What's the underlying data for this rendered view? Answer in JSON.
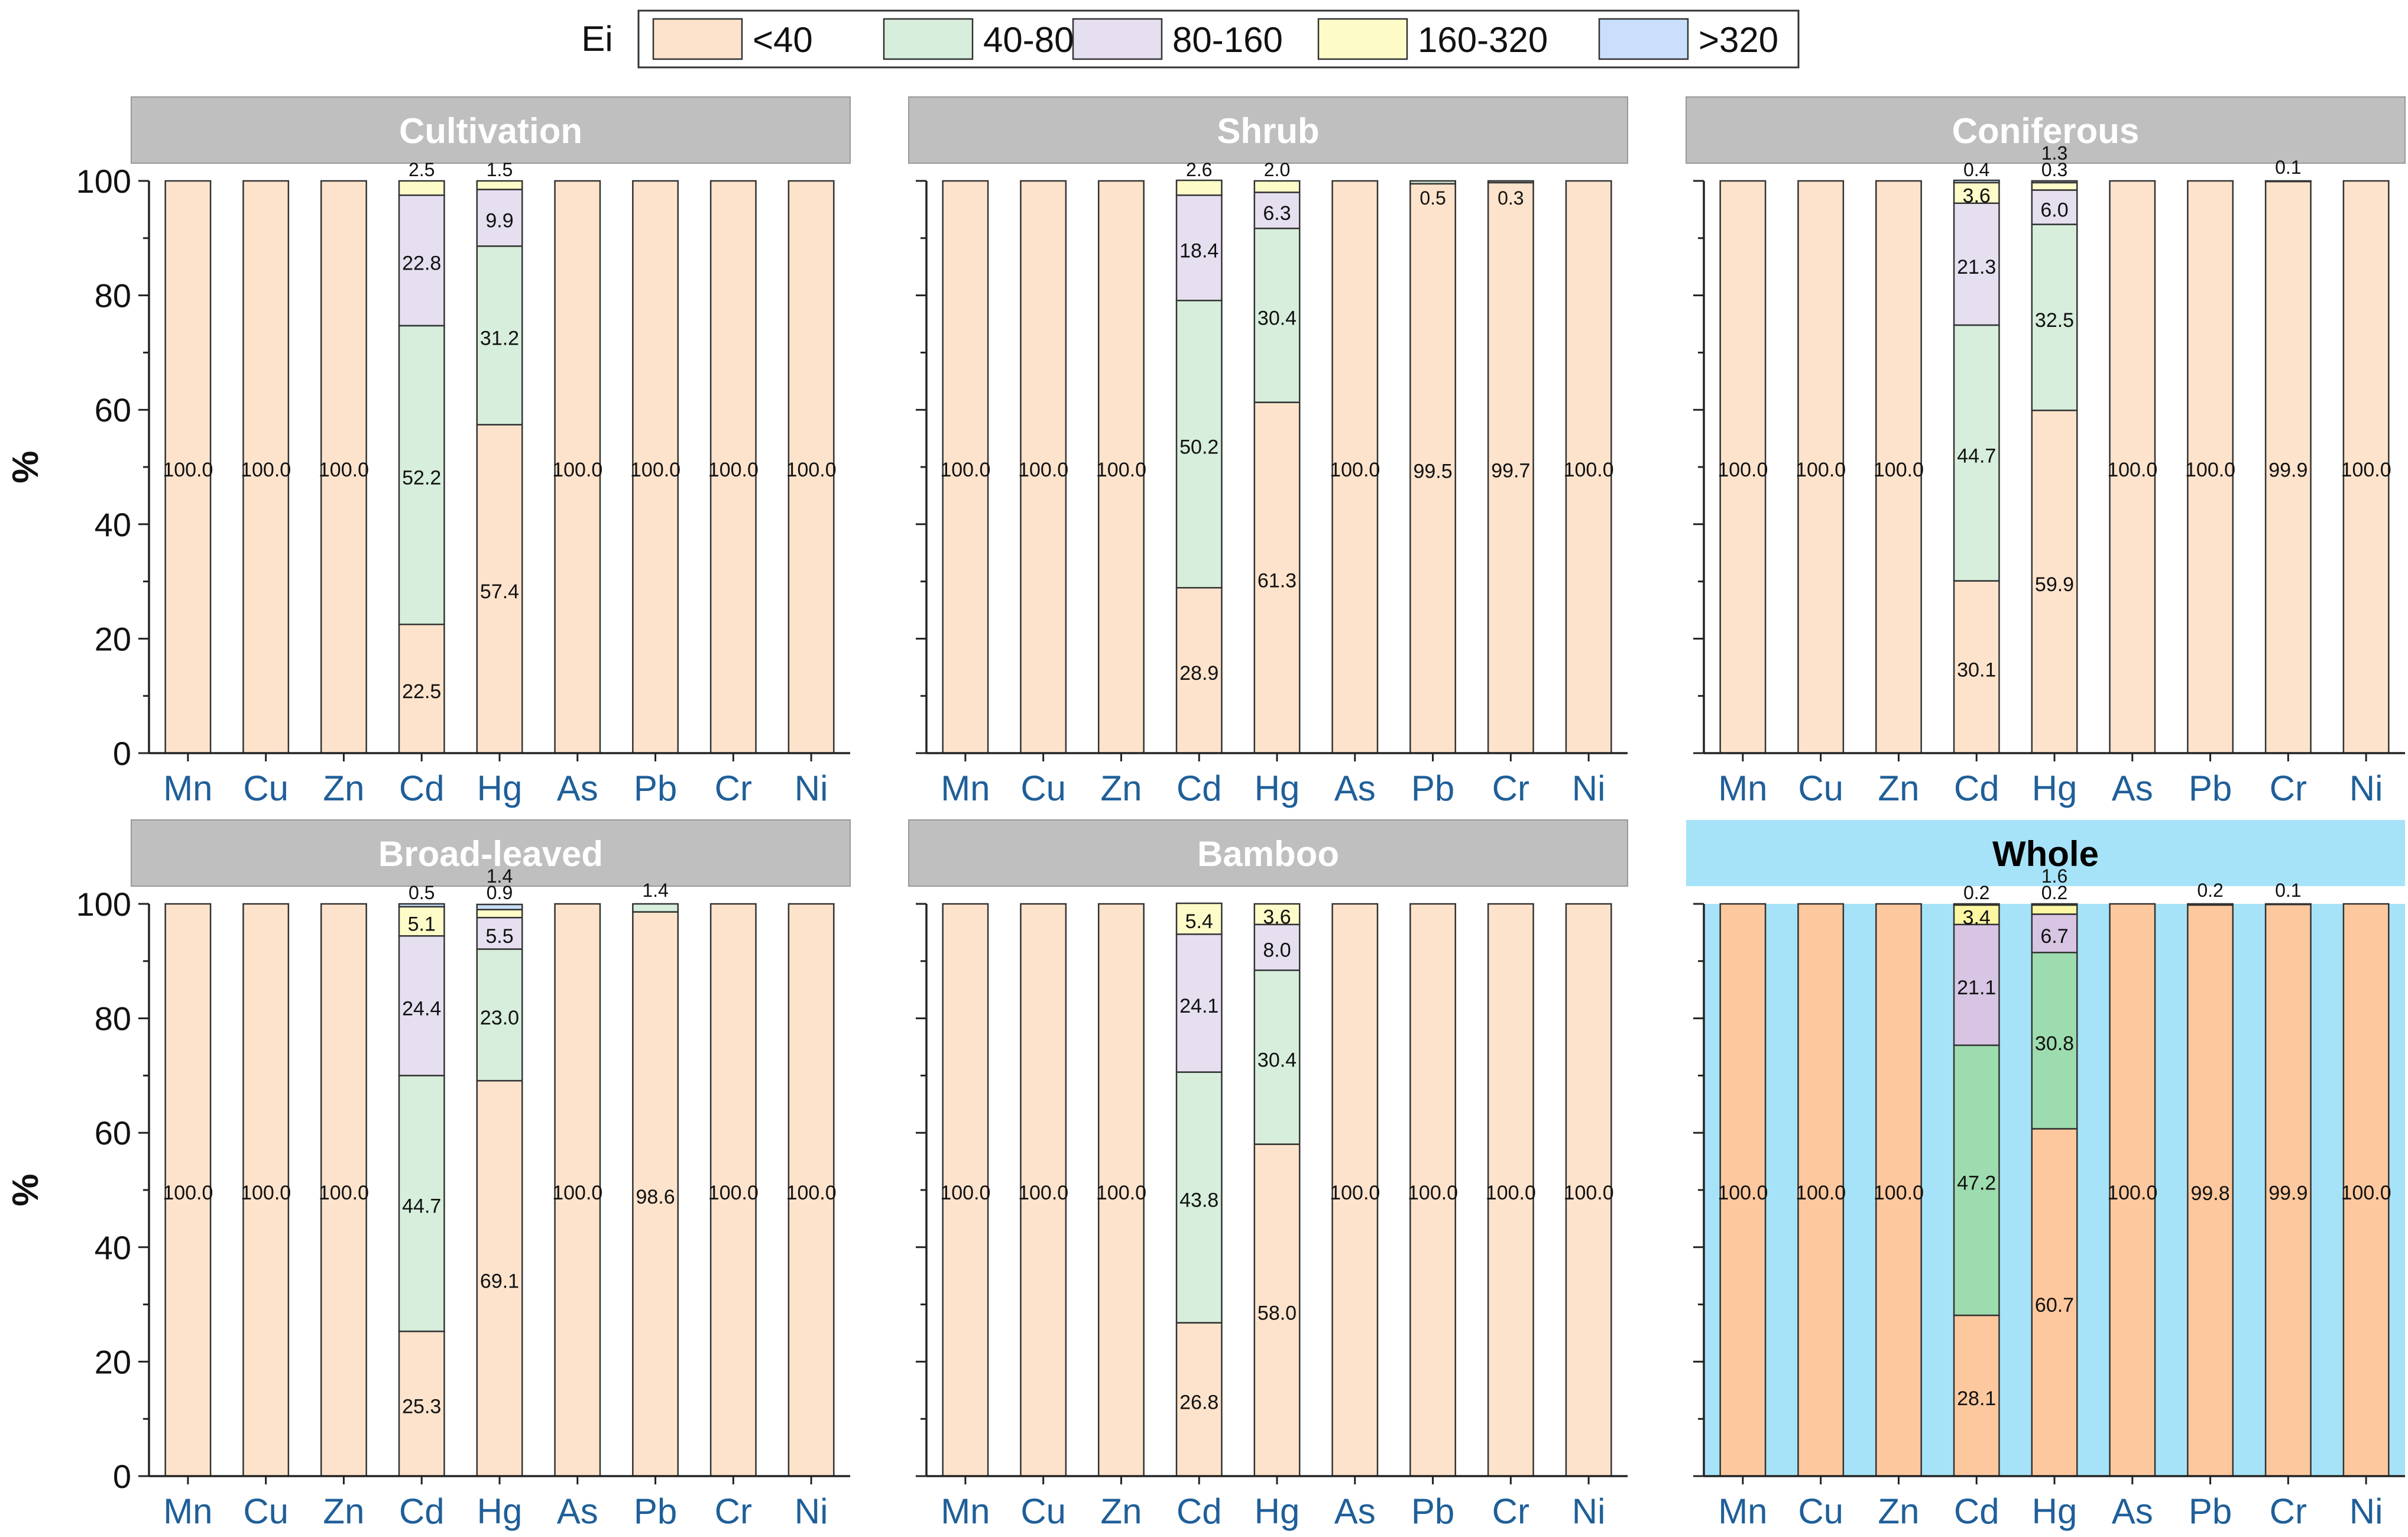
{
  "legend": {
    "title": "Ei",
    "entries": [
      {
        "label": "<40",
        "color": "#fde3cc"
      },
      {
        "label": "40-80",
        "color": "#d6eedb"
      },
      {
        "label": "80-160",
        "color": "#e6dff0"
      },
      {
        "label": "160-320",
        "color": "#fdfbc8"
      },
      {
        "label": ">320",
        "color": "#c9dffb"
      }
    ]
  },
  "colors": {
    "header_gray": "#bfbfbf",
    "header_blue": "#a6e3f8",
    "whole_bg": "#a6e3f8",
    "whole_c1": "#fdc89e",
    "whole_c2": "#9ddcae",
    "whole_c3": "#d8c4e3",
    "whole_c4": "#fdf7a2",
    "tick_blue": "#1f5f99"
  },
  "chart_data": [
    {
      "type": "bar",
      "stacked": true,
      "title": "Cultivation",
      "ylabel": "%",
      "ylim": [
        0,
        100
      ],
      "yticks": [
        0,
        20,
        40,
        60,
        80,
        100
      ],
      "categories": [
        "Mn",
        "Cu",
        "Zn",
        "Cd",
        "Hg",
        "As",
        "Pb",
        "Cr",
        "Ni"
      ],
      "series": [
        {
          "name": "<40",
          "values": [
            100.0,
            100.0,
            100.0,
            22.5,
            57.4,
            100.0,
            100.0,
            100.0,
            100.0
          ]
        },
        {
          "name": "40-80",
          "values": [
            0,
            0,
            0,
            52.2,
            31.2,
            0,
            0,
            0,
            0
          ]
        },
        {
          "name": "80-160",
          "values": [
            0,
            0,
            0,
            22.8,
            9.9,
            0,
            0,
            0,
            0
          ]
        },
        {
          "name": "160-320",
          "values": [
            0,
            0,
            0,
            2.5,
            1.5,
            0,
            0,
            0,
            0
          ]
        },
        {
          "name": ">320",
          "values": [
            0,
            0,
            0,
            0,
            0,
            0,
            0,
            0,
            0
          ]
        }
      ]
    },
    {
      "type": "bar",
      "stacked": true,
      "title": "Shrub",
      "ylim": [
        0,
        100
      ],
      "yticks": [
        0,
        20,
        40,
        60,
        80,
        100
      ],
      "categories": [
        "Mn",
        "Cu",
        "Zn",
        "Cd",
        "Hg",
        "As",
        "Pb",
        "Cr",
        "Ni"
      ],
      "series": [
        {
          "name": "<40",
          "values": [
            100.0,
            100.0,
            100.0,
            28.9,
            61.3,
            100.0,
            99.5,
            99.7,
            100.0
          ]
        },
        {
          "name": "40-80",
          "values": [
            0,
            0,
            0,
            50.2,
            30.4,
            0,
            0.5,
            0.3,
            0
          ]
        },
        {
          "name": "80-160",
          "values": [
            0,
            0,
            0,
            18.4,
            6.3,
            0,
            0,
            0,
            0
          ]
        },
        {
          "name": "160-320",
          "values": [
            0,
            0,
            0,
            2.6,
            2.0,
            0,
            0,
            0,
            0
          ]
        },
        {
          "name": ">320",
          "values": [
            0,
            0,
            0,
            0,
            0,
            0,
            0,
            0,
            0
          ]
        }
      ]
    },
    {
      "type": "bar",
      "stacked": true,
      "title": "Coniferous",
      "ylim": [
        0,
        100
      ],
      "yticks": [
        0,
        20,
        40,
        60,
        80,
        100
      ],
      "categories": [
        "Mn",
        "Cu",
        "Zn",
        "Cd",
        "Hg",
        "As",
        "Pb",
        "Cr",
        "Ni"
      ],
      "series": [
        {
          "name": "<40",
          "values": [
            100.0,
            100.0,
            100.0,
            30.1,
            59.9,
            100.0,
            100.0,
            99.9,
            100.0
          ]
        },
        {
          "name": "40-80",
          "values": [
            0,
            0,
            0,
            44.7,
            32.5,
            0,
            0,
            0.1,
            0
          ]
        },
        {
          "name": "80-160",
          "values": [
            0,
            0,
            0,
            21.3,
            6.0,
            0,
            0,
            0,
            0
          ]
        },
        {
          "name": "160-320",
          "values": [
            0,
            0,
            0,
            3.6,
            1.3,
            0,
            0,
            0,
            0
          ]
        },
        {
          "name": ">320",
          "values": [
            0,
            0,
            0,
            0.4,
            0.3,
            0,
            0,
            0,
            0
          ]
        }
      ]
    },
    {
      "type": "bar",
      "stacked": true,
      "title": "Broad-leaved",
      "ylabel": "%",
      "ylim": [
        0,
        100
      ],
      "yticks": [
        0,
        20,
        40,
        60,
        80,
        100
      ],
      "categories": [
        "Mn",
        "Cu",
        "Zn",
        "Cd",
        "Hg",
        "As",
        "Pb",
        "Cr",
        "Ni"
      ],
      "series": [
        {
          "name": "<40",
          "values": [
            100.0,
            100.0,
            100.0,
            25.3,
            69.1,
            100.0,
            98.6,
            100.0,
            100.0
          ]
        },
        {
          "name": "40-80",
          "values": [
            0,
            0,
            0,
            44.7,
            23.0,
            0,
            1.4,
            0,
            0
          ]
        },
        {
          "name": "80-160",
          "values": [
            0,
            0,
            0,
            24.4,
            5.5,
            0,
            0,
            0,
            0
          ]
        },
        {
          "name": "160-320",
          "values": [
            0,
            0,
            0,
            5.1,
            1.4,
            0,
            0,
            0,
            0
          ]
        },
        {
          "name": ">320",
          "values": [
            0,
            0,
            0,
            0.5,
            0.9,
            0,
            0,
            0,
            0
          ]
        }
      ]
    },
    {
      "type": "bar",
      "stacked": true,
      "title": "Bamboo",
      "ylim": [
        0,
        100
      ],
      "yticks": [
        0,
        20,
        40,
        60,
        80,
        100
      ],
      "categories": [
        "Mn",
        "Cu",
        "Zn",
        "Cd",
        "Hg",
        "As",
        "Pb",
        "Cr",
        "Ni"
      ],
      "series": [
        {
          "name": "<40",
          "values": [
            100.0,
            100.0,
            100.0,
            26.8,
            58.0,
            100.0,
            100.0,
            100.0,
            100.0
          ]
        },
        {
          "name": "40-80",
          "values": [
            0,
            0,
            0,
            43.8,
            30.4,
            0,
            0,
            0,
            0
          ]
        },
        {
          "name": "80-160",
          "values": [
            0,
            0,
            0,
            24.1,
            8.0,
            0,
            0,
            0,
            0
          ]
        },
        {
          "name": "160-320",
          "values": [
            0,
            0,
            0,
            5.4,
            3.6,
            0,
            0,
            0,
            0
          ]
        },
        {
          "name": ">320",
          "values": [
            0,
            0,
            0,
            0,
            0,
            0,
            0,
            0,
            0
          ]
        }
      ]
    },
    {
      "type": "bar",
      "stacked": true,
      "title": "Whole",
      "ylim": [
        0,
        100
      ],
      "yticks": [
        0,
        20,
        40,
        60,
        80,
        100
      ],
      "categories": [
        "Mn",
        "Cu",
        "Zn",
        "Cd",
        "Hg",
        "As",
        "Pb",
        "Cr",
        "Ni"
      ],
      "series": [
        {
          "name": "<40",
          "values": [
            100.0,
            100.0,
            100.0,
            28.1,
            60.7,
            100.0,
            99.8,
            99.9,
            100.0
          ]
        },
        {
          "name": "40-80",
          "values": [
            0,
            0,
            0,
            47.2,
            30.8,
            0,
            0.2,
            0.1,
            0
          ]
        },
        {
          "name": "80-160",
          "values": [
            0,
            0,
            0,
            21.1,
            6.7,
            0,
            0,
            0,
            0
          ]
        },
        {
          "name": "160-320",
          "values": [
            0,
            0,
            0,
            3.4,
            1.6,
            0,
            0,
            0,
            0
          ]
        },
        {
          "name": ">320",
          "values": [
            0,
            0,
            0,
            0.2,
            0.2,
            0,
            0,
            0,
            0
          ]
        }
      ]
    }
  ]
}
